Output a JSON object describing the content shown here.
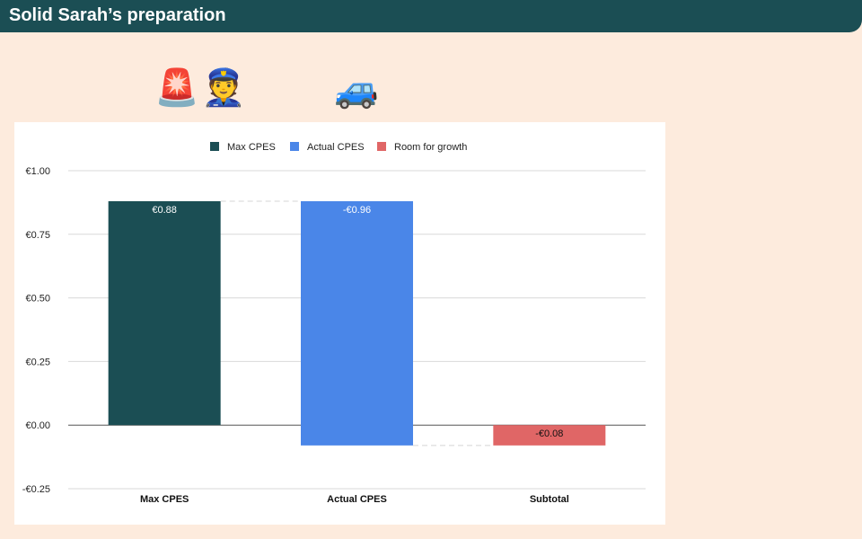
{
  "header": {
    "title": "Solid Sarah’s preparation"
  },
  "emojis": [
    {
      "name": "siren-icon",
      "glyph": "🚨"
    },
    {
      "name": "police-officer-icon",
      "glyph": "👮"
    },
    {
      "name": "car-icon",
      "glyph": "🚙"
    }
  ],
  "chart_data": {
    "type": "bar",
    "subtype": "waterfall",
    "categories": [
      "Max CPES",
      "Actual CPES",
      "Subtotal"
    ],
    "legend": [
      "Max CPES",
      "Actual CPES",
      "Room for growth"
    ],
    "legend_position": "top",
    "series": [
      {
        "name": "Max CPES",
        "color": "#1b4e54",
        "start": 0,
        "end": 0.88,
        "label": "€0.88"
      },
      {
        "name": "Actual CPES",
        "color": "#4a86e8",
        "start": 0.88,
        "end": -0.08,
        "label": "-€0.96"
      },
      {
        "name": "Room for growth",
        "color": "#e06666",
        "start": 0,
        "end": -0.08,
        "label": "-€0.08"
      }
    ],
    "yticks": [
      {
        "value": 1.0,
        "label": "€1.00"
      },
      {
        "value": 0.75,
        "label": "€0.75"
      },
      {
        "value": 0.5,
        "label": "€0.50"
      },
      {
        "value": 0.25,
        "label": "€0.25"
      },
      {
        "value": 0.0,
        "label": "€0.00"
      },
      {
        "value": -0.25,
        "label": "-€0.25"
      }
    ],
    "ylim": [
      -0.25,
      1.0
    ],
    "grid": true,
    "title": "",
    "xlabel": "",
    "ylabel": ""
  }
}
